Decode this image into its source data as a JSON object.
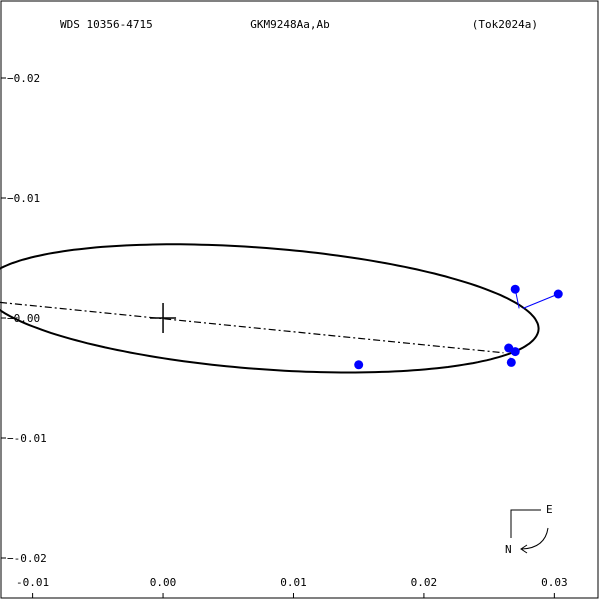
{
  "header": {
    "left": "WDS 10356-4715",
    "center": "GKM9248Aa,Ab",
    "right": "(Tok2024a)"
  },
  "compass": {
    "east_label": "E",
    "north_label": "N"
  },
  "chart_data": {
    "type": "scatter",
    "title": "",
    "xlabel": "",
    "ylabel": "",
    "xlim": [
      -0.0125,
      0.0335
    ],
    "ylim": [
      -0.0235,
      0.0265
    ],
    "x_ticks": [
      {
        "value": -0.01,
        "label": "-0.01"
      },
      {
        "value": 0.0,
        "label": "0.00"
      },
      {
        "value": 0.01,
        "label": "0.01"
      },
      {
        "value": 0.02,
        "label": "0.02"
      },
      {
        "value": 0.03,
        "label": "0.03"
      }
    ],
    "y_ticks": [
      {
        "value": 0.02,
        "label": "0.02"
      },
      {
        "value": 0.01,
        "label": "0.01"
      },
      {
        "value": 0.0,
        "label": "0.00"
      },
      {
        "value": -0.01,
        "label": "-0.01"
      },
      {
        "value": -0.02,
        "label": "-0.02"
      }
    ],
    "y_tick_prefix": "−",
    "grid": false,
    "primary_marker": {
      "x": 0.0,
      "y": 0.0,
      "symbol": "cross"
    },
    "orbit": {
      "center": [
        0.0075,
        0.0008
      ],
      "semi_axis_a": 0.02136,
      "semi_axis_b": 0.00505,
      "rotation_deg": -4.8
    },
    "line_of_nodes": [
      [
        -0.0125,
        0.0013
      ],
      [
        0.0261,
        -0.0029
      ]
    ],
    "observations": [
      {
        "x": 0.027,
        "y": 0.0024,
        "orbit_x": 0.0273,
        "orbit_y": 0.0008
      },
      {
        "x": 0.0303,
        "y": 0.002,
        "orbit_x": 0.0276,
        "orbit_y": 0.0008
      },
      {
        "x": 0.015,
        "y": -0.0039,
        "orbit_x": 0.015,
        "orbit_y": -0.0041
      },
      {
        "x": 0.0265,
        "y": -0.0025,
        "orbit_x": 0.0265,
        "orbit_y": -0.0027
      },
      {
        "x": 0.027,
        "y": -0.0028,
        "orbit_x": 0.0268,
        "orbit_y": -0.003
      },
      {
        "x": 0.0267,
        "y": -0.0037,
        "orbit_x": 0.0266,
        "orbit_y": -0.0033
      }
    ],
    "colors": {
      "observation": "#0000ff",
      "orbit": "#000000"
    }
  }
}
